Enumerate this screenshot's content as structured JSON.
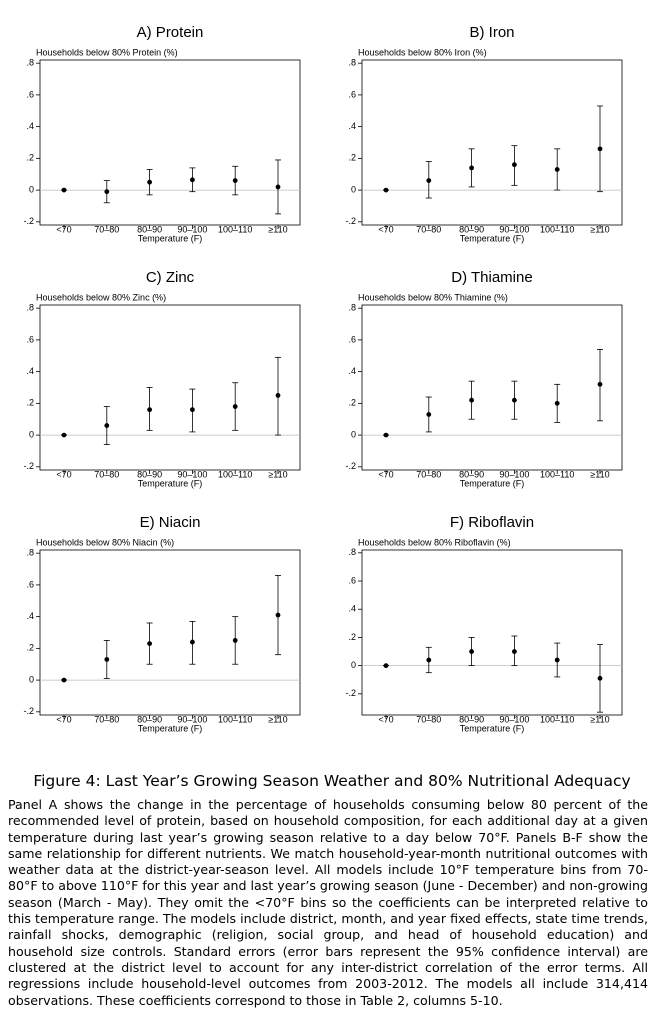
{
  "chart_data": [
    {
      "type": "errorbar",
      "title": "A) Protein",
      "y_label": "Households below 80% Protein (%)",
      "x_label": "Temperature (F)",
      "categories": [
        "<70",
        "70–80",
        "80–90",
        "90–100",
        "100–110",
        "≥110"
      ],
      "values": [
        0,
        -0.01,
        0.05,
        0.065,
        0.06,
        0.02
      ],
      "ci_low": [
        0,
        -0.08,
        -0.03,
        -0.01,
        -0.03,
        -0.15
      ],
      "ci_high": [
        0,
        0.06,
        0.13,
        0.14,
        0.15,
        0.19
      ],
      "color": "#000000",
      "ylim": [
        -0.22,
        0.82
      ],
      "yticks": [
        {
          "value": -0.2,
          "label": "-.2"
        },
        0,
        {
          "value": 0.2,
          "label": ".2"
        },
        {
          "value": 0.4,
          "label": ".4"
        },
        {
          "value": 0.6,
          "label": ".6"
        },
        {
          "value": 0.8,
          "label": ".8"
        }
      ]
    },
    {
      "type": "errorbar",
      "title": "B) Iron",
      "y_label": "Households below 80% Iron (%)",
      "x_label": "Temperature (F)",
      "categories": [
        "<70",
        "70–80",
        "80–90",
        "90–100",
        "100–110",
        "≥110"
      ],
      "values": [
        0,
        0.06,
        0.14,
        0.16,
        0.13,
        0.26
      ],
      "ci_low": [
        0,
        -0.05,
        0.02,
        0.03,
        0,
        -0.01
      ],
      "ci_high": [
        0,
        0.18,
        0.26,
        0.28,
        0.26,
        0.53
      ],
      "color": "#000000",
      "ylim": [
        -0.22,
        0.82
      ],
      "yticks": [
        {
          "value": -0.2,
          "label": "-.2"
        },
        0,
        {
          "value": 0.2,
          "label": ".2"
        },
        {
          "value": 0.4,
          "label": ".4"
        },
        {
          "value": 0.6,
          "label": ".6"
        },
        {
          "value": 0.8,
          "label": ".8"
        }
      ]
    },
    {
      "type": "errorbar",
      "title": "C) Zinc",
      "y_label": "Households below 80% Zinc (%)",
      "x_label": "Temperature (F)",
      "categories": [
        "<70",
        "70–80",
        "80–90",
        "90–100",
        "100–110",
        "≥110"
      ],
      "values": [
        0,
        0.06,
        0.16,
        0.16,
        0.18,
        0.25
      ],
      "ci_low": [
        0,
        -0.06,
        0.03,
        0.02,
        0.03,
        0
      ],
      "ci_high": [
        0,
        0.18,
        0.3,
        0.29,
        0.33,
        0.49
      ],
      "color": "#000000",
      "ylim": [
        -0.22,
        0.82
      ],
      "yticks": [
        {
          "value": -0.2,
          "label": "-.2"
        },
        0,
        {
          "value": 0.2,
          "label": ".2"
        },
        {
          "value": 0.4,
          "label": ".4"
        },
        {
          "value": 0.6,
          "label": ".6"
        },
        {
          "value": 0.8,
          "label": ".8"
        }
      ]
    },
    {
      "type": "errorbar",
      "title": "D) Thiamine",
      "y_label": "Households below 80% Thiamine (%)",
      "x_label": "Temperature (F)",
      "categories": [
        "<70",
        "70–80",
        "80–90",
        "90–100",
        "100–110",
        "≥110"
      ],
      "values": [
        0,
        0.13,
        0.22,
        0.22,
        0.2,
        0.32
      ],
      "ci_low": [
        0,
        0.02,
        0.1,
        0.1,
        0.08,
        0.09
      ],
      "ci_high": [
        0,
        0.24,
        0.34,
        0.34,
        0.32,
        0.54
      ],
      "color": "#000000",
      "ylim": [
        -0.22,
        0.82
      ],
      "yticks": [
        {
          "value": -0.2,
          "label": "-.2"
        },
        0,
        {
          "value": 0.2,
          "label": ".2"
        },
        {
          "value": 0.4,
          "label": ".4"
        },
        {
          "value": 0.6,
          "label": ".6"
        },
        {
          "value": 0.8,
          "label": ".8"
        }
      ]
    },
    {
      "type": "errorbar",
      "title": "E) Niacin",
      "y_label": "Households below 80% Niacin (%)",
      "x_label": "Temperature (F)",
      "categories": [
        "<70",
        "70–80",
        "80–90",
        "90–100",
        "100–110",
        "≥110"
      ],
      "values": [
        0,
        0.13,
        0.23,
        0.24,
        0.25,
        0.41
      ],
      "ci_low": [
        0,
        0.01,
        0.1,
        0.1,
        0.1,
        0.16
      ],
      "ci_high": [
        0,
        0.25,
        0.36,
        0.37,
        0.4,
        0.66
      ],
      "color": "#000000",
      "ylim": [
        -0.22,
        0.82
      ],
      "yticks": [
        {
          "value": -0.2,
          "label": "-.2"
        },
        0,
        {
          "value": 0.2,
          "label": ".2"
        },
        {
          "value": 0.4,
          "label": ".4"
        },
        {
          "value": 0.6,
          "label": ".6"
        },
        {
          "value": 0.8,
          "label": ".8"
        }
      ]
    },
    {
      "type": "errorbar",
      "title": "F) Riboflavin",
      "y_label": "Households below 80% Riboflavin (%)",
      "x_label": "Temperature (F)",
      "categories": [
        "<70",
        "70–80",
        "80–90",
        "90–100",
        "100–110",
        "≥110"
      ],
      "values": [
        0,
        0.04,
        0.1,
        0.1,
        0.04,
        -0.09
      ],
      "ci_low": [
        0,
        -0.05,
        0,
        0,
        -0.08,
        -0.33
      ],
      "ci_high": [
        0,
        0.13,
        0.2,
        0.21,
        0.16,
        0.15
      ],
      "color": "#000000",
      "ylim": [
        -0.35,
        0.82
      ],
      "yticks": [
        {
          "value": -0.2,
          "label": "-.2"
        },
        0,
        {
          "value": 0.2,
          "label": ".2"
        },
        {
          "value": 0.4,
          "label": ".4"
        },
        {
          "value": 0.6,
          "label": ".6"
        },
        {
          "value": 0.8,
          "label": ".8"
        }
      ]
    }
  ],
  "caption": "Figure 4: Last Year’s Growing Season Weather and 80% Nutritional Adequacy",
  "note": "Panel A shows the change in the percentage of households consuming below 80 percent of the recommended level of protein, based on household composition, for each additional day at a given temperature during last year’s growing season relative to a day below 70°F. Panels B-F show the same relationship for different nutrients. We match household-year-month nutritional outcomes with weather data at the district-year-season level. All models include 10°F temperature bins from 70-80°F to above 110°F for this year and last year’s growing season (June - December) and non-growing season (March - May). They omit the <70°F bins so the coefficients can be interpreted relative to this temperature range. The models include district, month, and year fixed effects, state time trends, rainfall shocks, demographic (religion, social group, and head of household education) and household size controls. Standard errors (error bars represent the 95% confidence interval) are clustered at the district level to account for any inter-district correlation of the error terms. All regressions include household-level outcomes from 2003-2012. The models all include 314,414 observations. These coefficients correspond to those in Table 2, columns 5-10."
}
